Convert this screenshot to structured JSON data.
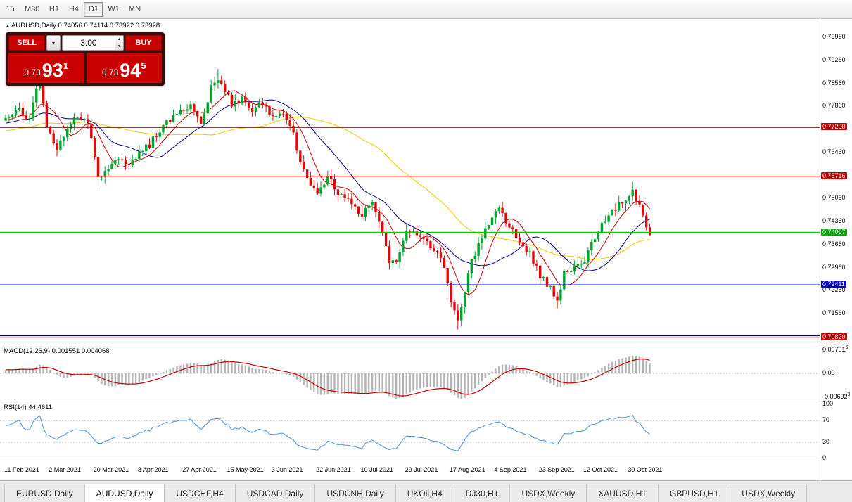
{
  "toolbar": {
    "timeframes": [
      {
        "label": "15",
        "active": false
      },
      {
        "label": "M30",
        "active": false
      },
      {
        "label": "H1",
        "active": false
      },
      {
        "label": "H4",
        "active": false
      },
      {
        "label": "D1",
        "active": true
      },
      {
        "label": "W1",
        "active": false
      },
      {
        "label": "MN",
        "active": false
      }
    ]
  },
  "symbol_header": {
    "marker": "▴",
    "name": "AUDUSD,Daily",
    "ohlc": "0.74056 0.74114 0.73922 0.73928"
  },
  "trade_panel": {
    "sell_label": "SELL",
    "buy_label": "BUY",
    "dropdown_icon": "▾",
    "spin_up": "▴",
    "spin_down": "▾",
    "volume": "3.00",
    "bid": {
      "prefix": "0.73",
      "big": "93",
      "sup": "1"
    },
    "ask": {
      "prefix": "0.73",
      "big": "94",
      "sup": "5"
    }
  },
  "indicators": {
    "macd": {
      "label": "MACD(12,26,9)",
      "values": "0.001551 0.004068",
      "axis": {
        "top_main": "0.00701",
        "top_sup": "5",
        "zero": "0.00",
        "bottom_main": "-0.00692",
        "bottom_sup": "3"
      }
    },
    "rsi": {
      "label": "RSI(14)",
      "value": "44.4611",
      "axis": [
        "100",
        "70",
        "30",
        "0"
      ],
      "guides": [
        70,
        30
      ]
    }
  },
  "price_axis": {
    "labels": [
      "0.79960",
      "0.79260",
      "0.78560",
      "0.77860",
      "0.76460",
      "0.75060",
      "0.74360",
      "0.73660",
      "0.72960",
      "0.72260",
      "0.71560"
    ],
    "label_prices": [
      0.7996,
      0.7926,
      0.7856,
      0.7786,
      0.7646,
      0.7506,
      0.7436,
      0.7366,
      0.7296,
      0.7226,
      0.7156
    ],
    "badges": [
      {
        "text": "0.77200",
        "price": 0.772,
        "color": "#c40000"
      },
      {
        "text": "0.75716",
        "price": 0.75716,
        "color": "#c40000"
      },
      {
        "text": "0.74007",
        "price": 0.74007,
        "color": "#00a800"
      },
      {
        "text": "0.72411",
        "price": 0.72411,
        "color": "#0000c8"
      },
      {
        "text": "0.70820",
        "price": 0.7082,
        "color": "#c40000"
      }
    ]
  },
  "hlines": [
    {
      "price": 0.772,
      "color": "#d40000",
      "width": 1.2
    },
    {
      "price": 0.75716,
      "color": "#d40000",
      "width": 1.2
    },
    {
      "price": 0.74007,
      "color": "#00cc00",
      "width": 2
    },
    {
      "price": 0.72411,
      "color": "#0000cc",
      "width": 1.5
    },
    {
      "price": 0.7087,
      "color": "#000099",
      "width": 1.5
    },
    {
      "price": 0.7082,
      "color": "#d40000",
      "width": 1.2
    }
  ],
  "date_axis": [
    {
      "i": 0,
      "label": "11 Feb 2021"
    },
    {
      "i": 13,
      "label": "2 Mar 2021"
    },
    {
      "i": 26,
      "label": "20 Mar 2021"
    },
    {
      "i": 39,
      "label": "8 Apr 2021"
    },
    {
      "i": 52,
      "label": "27 Apr 2021"
    },
    {
      "i": 65,
      "label": "15 May 2021"
    },
    {
      "i": 78,
      "label": "3 Jun 2021"
    },
    {
      "i": 91,
      "label": "22 Jun 2021"
    },
    {
      "i": 104,
      "label": "10 Jul 2021"
    },
    {
      "i": 117,
      "label": "29 Jul 2021"
    },
    {
      "i": 130,
      "label": "17 Aug 2021"
    },
    {
      "i": 143,
      "label": "4 Sep 2021"
    },
    {
      "i": 156,
      "label": "23 Sep 2021"
    },
    {
      "i": 169,
      "label": "12 Oct 2021"
    },
    {
      "i": 182,
      "label": "30 Oct 2021"
    }
  ],
  "tabs": [
    {
      "label": "EURUSD,Daily",
      "active": false
    },
    {
      "label": "AUDUSD,Daily",
      "active": true
    },
    {
      "label": "USDCHF,H4",
      "active": false
    },
    {
      "label": "USDCAD,Daily",
      "active": false
    },
    {
      "label": "USDCNH,Daily",
      "active": false
    },
    {
      "label": "UKOil,H4",
      "active": false
    },
    {
      "label": "DJ30,H1",
      "active": false
    },
    {
      "label": "USDX,Weekly",
      "active": false
    },
    {
      "label": "XAUUSD,H1",
      "active": false
    },
    {
      "label": "GBPUSD,H1",
      "active": false
    },
    {
      "label": "USDX,Weekly",
      "active": false
    }
  ],
  "colors": {
    "up": "#00a32e",
    "down": "#e00707",
    "macd_hist": "#b4b4b4",
    "macd_signal": "#c80000",
    "rsi_line": "#4a8fd4",
    "guide": "#b8b8b8"
  },
  "chart_data": {
    "type": "candlestick",
    "symbol": "AUDUSD",
    "timeframe": "Daily",
    "bars": 189,
    "last_close": 0.73928,
    "price_range": [
      0.706,
      0.805
    ],
    "anchors": [
      [
        0,
        0.7755
      ],
      [
        4,
        0.7775
      ],
      [
        7,
        0.7745
      ],
      [
        9,
        0.783
      ],
      [
        10,
        0.7868
      ],
      [
        12,
        0.7725
      ],
      [
        15,
        0.7652
      ],
      [
        18,
        0.7715
      ],
      [
        21,
        0.7758
      ],
      [
        24,
        0.7735
      ],
      [
        27,
        0.7568
      ],
      [
        30,
        0.759
      ],
      [
        33,
        0.7625
      ],
      [
        36,
        0.7605
      ],
      [
        39,
        0.765
      ],
      [
        42,
        0.7668
      ],
      [
        45,
        0.7715
      ],
      [
        48,
        0.7742
      ],
      [
        51,
        0.7775
      ],
      [
        54,
        0.779
      ],
      [
        57,
        0.7738
      ],
      [
        60,
        0.784
      ],
      [
        62,
        0.7872
      ],
      [
        64,
        0.7836
      ],
      [
        66,
        0.7788
      ],
      [
        69,
        0.7806
      ],
      [
        72,
        0.777
      ],
      [
        75,
        0.7795
      ],
      [
        78,
        0.7752
      ],
      [
        81,
        0.7766
      ],
      [
        84,
        0.77
      ],
      [
        86,
        0.7612
      ],
      [
        88,
        0.7566
      ],
      [
        91,
        0.7508
      ],
      [
        94,
        0.7568
      ],
      [
        97,
        0.7522
      ],
      [
        100,
        0.7496
      ],
      [
        104,
        0.7456
      ],
      [
        107,
        0.7486
      ],
      [
        110,
        0.7398
      ],
      [
        112,
        0.7302
      ],
      [
        115,
        0.733
      ],
      [
        117,
        0.7404
      ],
      [
        120,
        0.7394
      ],
      [
        123,
        0.7366
      ],
      [
        126,
        0.7342
      ],
      [
        128,
        0.7292
      ],
      [
        130,
        0.7198
      ],
      [
        132,
        0.7136
      ],
      [
        134,
        0.7226
      ],
      [
        136,
        0.7312
      ],
      [
        139,
        0.7386
      ],
      [
        142,
        0.745
      ],
      [
        144,
        0.7466
      ],
      [
        147,
        0.7426
      ],
      [
        150,
        0.7366
      ],
      [
        153,
        0.7336
      ],
      [
        156,
        0.7266
      ],
      [
        159,
        0.7236
      ],
      [
        161,
        0.7186
      ],
      [
        163,
        0.7286
      ],
      [
        166,
        0.7296
      ],
      [
        169,
        0.7316
      ],
      [
        172,
        0.7386
      ],
      [
        175,
        0.7436
      ],
      [
        178,
        0.7476
      ],
      [
        181,
        0.7506
      ],
      [
        183,
        0.7536
      ],
      [
        185,
        0.7476
      ],
      [
        187,
        0.7416
      ],
      [
        188,
        0.7393
      ]
    ],
    "spikes": [
      {
        "i": 10,
        "high": 0.7932
      },
      {
        "i": 27,
        "low": 0.7532
      },
      {
        "i": 62,
        "high": 0.7898
      },
      {
        "i": 112,
        "low": 0.7288
      },
      {
        "i": 132,
        "low": 0.7106
      },
      {
        "i": 161,
        "low": 0.717
      },
      {
        "i": 183,
        "high": 0.7555
      }
    ],
    "moving_averages": [
      {
        "period": 8,
        "color": "#cc0000"
      },
      {
        "period": 20,
        "color": "#000080"
      },
      {
        "period": 50,
        "color": "#f0c800"
      }
    ]
  }
}
